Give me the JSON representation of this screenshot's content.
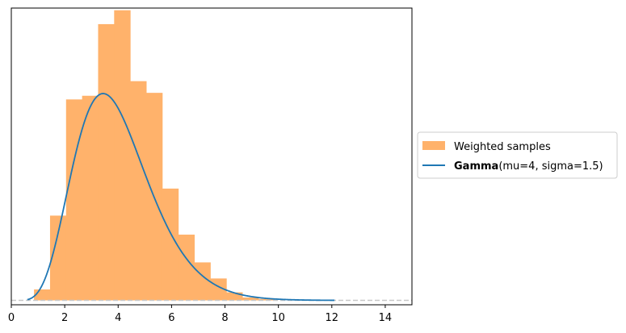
{
  "chart_data": {
    "type": "bar",
    "xlim": [
      0,
      15
    ],
    "xticks": [
      0,
      2,
      4,
      6,
      8,
      10,
      12,
      14
    ],
    "ylim": [
      -0.006,
      0.4
    ],
    "show_y_ticks": false,
    "grid": false,
    "legend": {
      "placement": "outside-right",
      "histogram_label": "Weighted samples",
      "curve_label_bold": "Gamma",
      "curve_label_rest": "(mu=4, sigma=1.5)"
    },
    "colors": {
      "histogram": "#ffb26b",
      "curve": "#1f77b4",
      "baseline": "#c7c7c7"
    },
    "histogram": {
      "bins": [
        {
          "x0": 0.85,
          "x1": 1.45,
          "value": 0.015
        },
        {
          "x0": 1.45,
          "x1": 2.05,
          "value": 0.116
        },
        {
          "x0": 2.05,
          "x1": 2.65,
          "value": 0.275
        },
        {
          "x0": 2.65,
          "x1": 3.25,
          "value": 0.28
        },
        {
          "x0": 3.25,
          "x1": 3.85,
          "value": 0.378
        },
        {
          "x0": 3.85,
          "x1": 4.45,
          "value": 0.397
        },
        {
          "x0": 4.45,
          "x1": 5.05,
          "value": 0.3
        },
        {
          "x0": 5.05,
          "x1": 5.65,
          "value": 0.284
        },
        {
          "x0": 5.65,
          "x1": 6.25,
          "value": 0.153
        },
        {
          "x0": 6.25,
          "x1": 6.85,
          "value": 0.09
        },
        {
          "x0": 6.85,
          "x1": 7.45,
          "value": 0.052
        },
        {
          "x0": 7.45,
          "x1": 8.05,
          "value": 0.03
        },
        {
          "x0": 8.05,
          "x1": 8.65,
          "value": 0.011
        },
        {
          "x0": 8.65,
          "x1": 9.25,
          "value": 0.004
        },
        {
          "x0": 9.25,
          "x1": 9.85,
          "value": 0.002
        }
      ]
    },
    "curve": {
      "distribution": "Gamma",
      "mu": 4,
      "sigma": 1.5,
      "x_range": [
        0.6,
        12.1
      ]
    }
  }
}
